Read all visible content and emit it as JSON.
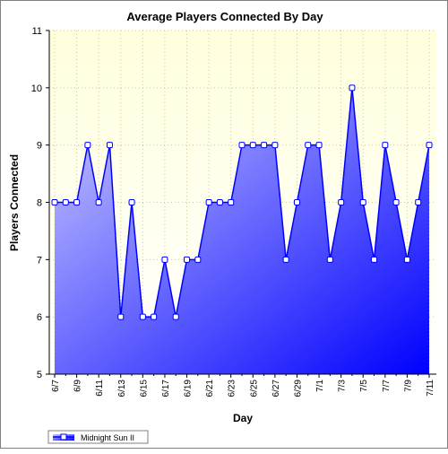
{
  "chart_data": {
    "type": "area",
    "title": "Average Players Connected By Day",
    "xlabel": "Day",
    "ylabel": "Players Connected",
    "ylim": [
      5,
      11
    ],
    "yticks": [
      5,
      6,
      7,
      8,
      9,
      10,
      11
    ],
    "grid": true,
    "legend_position": "bottom-left",
    "x": [
      "6/7",
      "6/8",
      "6/9",
      "6/10",
      "6/11",
      "6/12",
      "6/13",
      "6/14",
      "6/15",
      "6/16",
      "6/17",
      "6/18",
      "6/19",
      "6/20",
      "6/21",
      "6/22",
      "6/23",
      "6/24",
      "6/25",
      "6/26",
      "6/27",
      "6/28",
      "6/29",
      "6/30",
      "7/1",
      "7/2",
      "7/3",
      "7/4",
      "7/5",
      "7/6",
      "7/7",
      "7/8",
      "7/9",
      "7/10",
      "7/11"
    ],
    "tick_labels": [
      "6/7",
      "6/9",
      "6/11",
      "6/13",
      "6/15",
      "6/17",
      "6/19",
      "6/21",
      "6/23",
      "6/25",
      "6/27",
      "6/29",
      "7/1",
      "7/3",
      "7/5",
      "7/7",
      "7/9",
      "7/11"
    ],
    "series": [
      {
        "name": "Midnight Sun II",
        "values": [
          8,
          8,
          8,
          9,
          8,
          9,
          6,
          8,
          6,
          6,
          7,
          6,
          7,
          7,
          8,
          8,
          8,
          9,
          9,
          9,
          9,
          7,
          8,
          9,
          9,
          7,
          8,
          10,
          8,
          7,
          9,
          8,
          7,
          8,
          9
        ]
      }
    ],
    "colors": {
      "line": "#0000ff",
      "fill_light": "#ccccff",
      "fill_dark": "#0000ff",
      "plot_bg": "#ffffdd",
      "grid": "#c8c8a0"
    }
  }
}
